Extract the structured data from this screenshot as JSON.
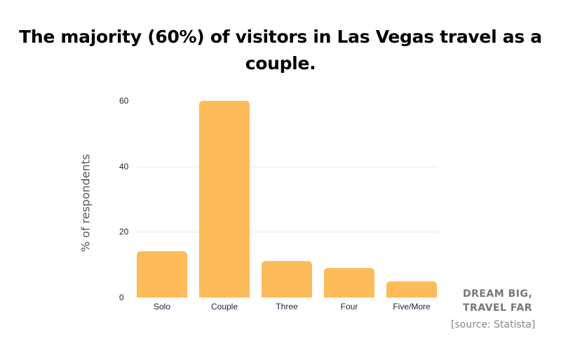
{
  "title": "The majority (60%) of visitors in Las Vegas travel as a couple.",
  "branding": {
    "line1": "DREAM BIG,",
    "line2": "TRAVEL FAR"
  },
  "source": "[source: Statista]",
  "colors": {
    "bar": "#fdbb59",
    "grid": "#e8e8e8"
  },
  "chart_data": {
    "type": "bar",
    "title": "The majority (60%) of visitors in Las Vegas travel as a couple.",
    "xlabel": "",
    "ylabel": "% of respondents",
    "categories": [
      "Solo",
      "Couple",
      "Three",
      "Four",
      "Five/More"
    ],
    "values": [
      14,
      60,
      11,
      9,
      5
    ],
    "yticks": [
      "0",
      "20",
      "40",
      "60"
    ],
    "ylim": [
      0,
      60
    ],
    "grid": true,
    "legend": "none"
  }
}
